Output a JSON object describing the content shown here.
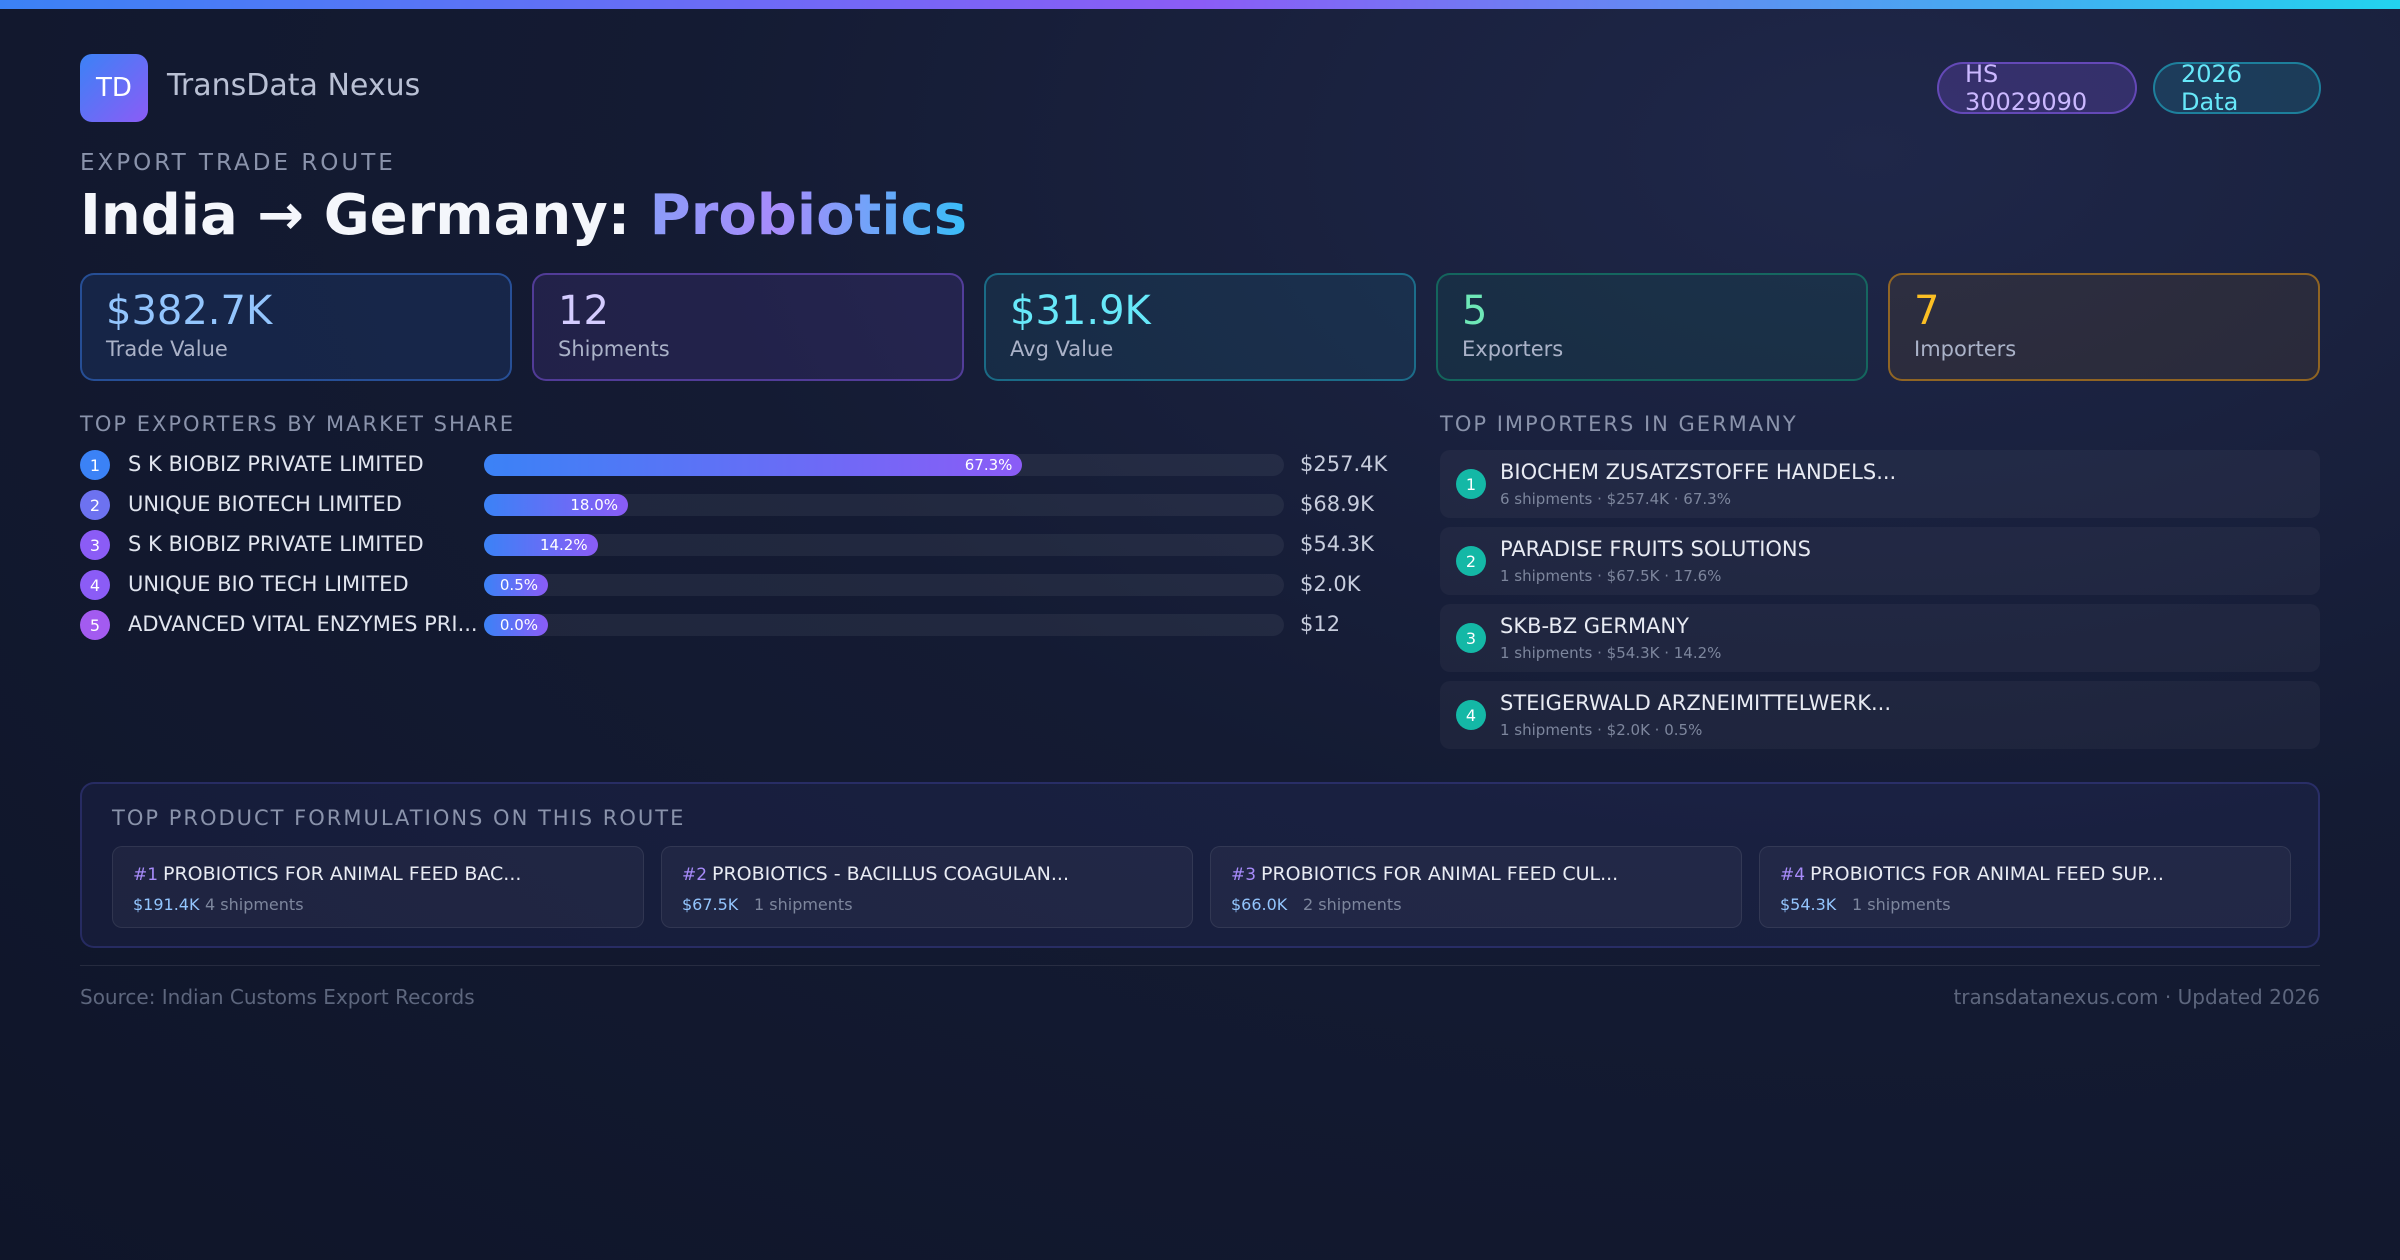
{
  "brand": {
    "logo": "TD",
    "name": "TransData Nexus"
  },
  "badges": {
    "hs_code": "HS 30029090",
    "year": "2026 Data"
  },
  "route": {
    "eyebrow": "EXPORT TRADE ROUTE",
    "title_prefix": "India → Germany: ",
    "title_product": "Probiotics"
  },
  "stats": [
    {
      "value": "$382.7K",
      "label": "Trade Value"
    },
    {
      "value": "12",
      "label": "Shipments"
    },
    {
      "value": "$31.9K",
      "label": "Avg Value"
    },
    {
      "value": "5",
      "label": "Exporters"
    },
    {
      "value": "7",
      "label": "Importers"
    }
  ],
  "exporters": {
    "title": "TOP EXPORTERS BY MARKET SHARE",
    "items": [
      {
        "rank": "1",
        "name": "S K BIOBIZ PRIVATE LIMITED",
        "share": 67.3,
        "share_label": "67.3%",
        "value": "$257.4K",
        "badge_color": "#3b82f6"
      },
      {
        "rank": "2",
        "name": "UNIQUE BIOTECH LIMITED",
        "share": 18.0,
        "share_label": "18.0%",
        "value": "$68.9K",
        "badge_color": "#6d72f0"
      },
      {
        "rank": "3",
        "name": "S K BIOBIZ PRIVATE LIMITED",
        "share": 14.2,
        "share_label": "14.2%",
        "value": "$54.3K",
        "badge_color": "#8b5cf6"
      },
      {
        "rank": "4",
        "name": "UNIQUE BIO TECH LIMITED",
        "share": 0.5,
        "share_label": "0.5%",
        "value": "$2.0K",
        "badge_color": "#8b5cf6"
      },
      {
        "rank": "5",
        "name": "ADVANCED VITAL ENZYMES PRI...",
        "share": 0.0,
        "share_label": "0.0%",
        "value": "$12",
        "badge_color": "#a35bf0"
      }
    ]
  },
  "importers": {
    "title": "TOP IMPORTERS IN GERMANY",
    "items": [
      {
        "rank": "1",
        "name": "BIOCHEM ZUSATZSTOFFE HANDELS...",
        "detail": "6 shipments · $257.4K · 67.3%"
      },
      {
        "rank": "2",
        "name": "PARADISE FRUITS SOLUTIONS",
        "detail": "1 shipments · $67.5K · 17.6%"
      },
      {
        "rank": "3",
        "name": "SKB-BZ GERMANY",
        "detail": "1 shipments · $54.3K · 14.2%"
      },
      {
        "rank": "4",
        "name": "STEIGERWALD ARZNEIMITTELWERK...",
        "detail": "1 shipments · $2.0K · 0.5%"
      }
    ]
  },
  "formulations": {
    "title": "TOP PRODUCT FORMULATIONS ON THIS ROUTE",
    "items": [
      {
        "rank": "#1",
        "name": "PROBIOTICS FOR ANIMAL FEED BAC...",
        "value": "$191.4K",
        "shipments": "4 shipments"
      },
      {
        "rank": "#2",
        "name": "PROBIOTICS - BACILLUS COAGULAN...",
        "value": "$67.5K",
        "shipments": "1 shipments"
      },
      {
        "rank": "#3",
        "name": "PROBIOTICS FOR ANIMAL FEED CUL...",
        "value": "$66.0K",
        "shipments": "2 shipments"
      },
      {
        "rank": "#4",
        "name": "PROBIOTICS FOR ANIMAL FEED SUP...",
        "value": "$54.3K",
        "shipments": "1 shipments"
      }
    ]
  },
  "footer": {
    "source": "Source: Indian Customs Export Records",
    "site": "transdatanexus.com · Updated 2026"
  }
}
